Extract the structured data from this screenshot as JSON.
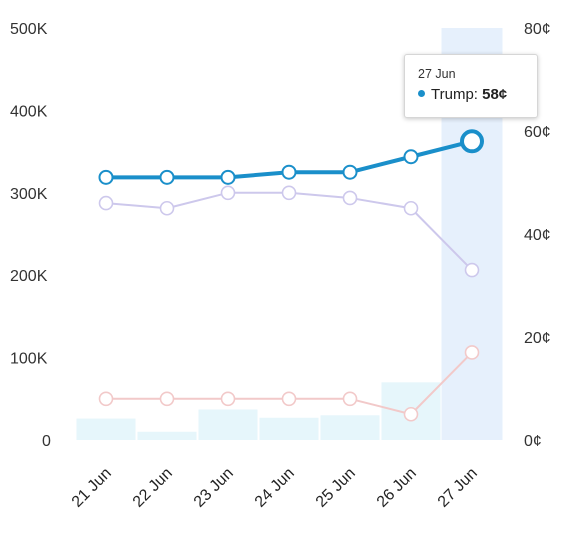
{
  "chart_data": {
    "type": "line",
    "categories": [
      "21 Jun",
      "22 Jun",
      "23 Jun",
      "24 Jun",
      "25 Jun",
      "26 Jun",
      "27 Jun"
    ],
    "left_axis": {
      "ticks": [
        "0",
        "100K",
        "200K",
        "300K",
        "400K",
        "500K"
      ],
      "ylim": [
        0,
        500000
      ]
    },
    "right_axis": {
      "ticks": [
        "0¢",
        "20¢",
        "40¢",
        "60¢",
        "80¢"
      ],
      "ylim": [
        0,
        80
      ]
    },
    "volume_bars": {
      "axis": "left",
      "color": "#e6f6fb",
      "values": [
        26000,
        10000,
        37000,
        27000,
        30000,
        70000,
        500000
      ]
    },
    "series": [
      {
        "name": "Trump",
        "axis": "right",
        "color": "#1a8fca",
        "values": [
          51,
          51,
          51,
          52,
          52,
          55,
          58
        ]
      },
      {
        "axis": "right",
        "color": "#cdc8ec",
        "values": [
          46,
          45,
          48,
          48,
          47,
          45,
          33
        ]
      },
      {
        "axis": "right",
        "color": "#f2c9c9",
        "values": [
          8,
          8,
          8,
          8,
          8,
          5,
          17
        ]
      }
    ],
    "highlight": {
      "category": "27 Jun",
      "band_color": "#e6f0fc"
    },
    "tooltip": {
      "date": "27 Jun",
      "label": "Trump:",
      "value": "58¢"
    }
  }
}
